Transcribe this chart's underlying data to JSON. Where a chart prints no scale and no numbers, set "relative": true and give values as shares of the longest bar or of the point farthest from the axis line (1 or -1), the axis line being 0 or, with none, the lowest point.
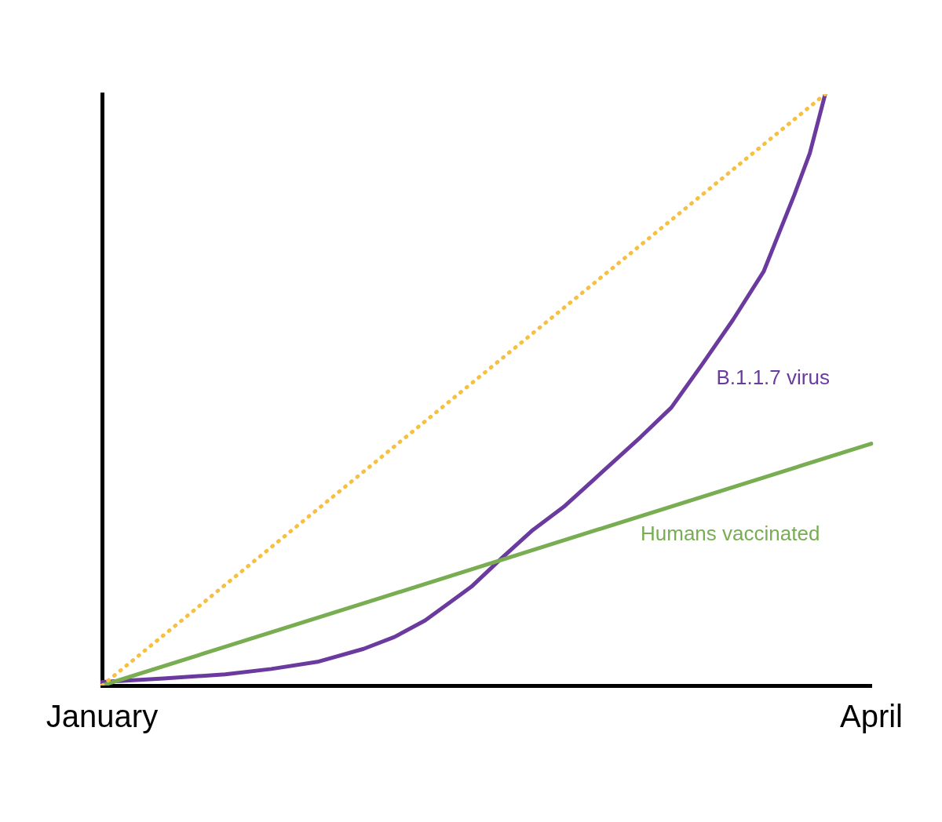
{
  "chart_data": {
    "type": "line",
    "relative": true,
    "tick_labels": "x",
    "grid": false,
    "legend": false,
    "marker": "none",
    "categories": [
      "January",
      null,
      null,
      null,
      null,
      null,
      null,
      null,
      null,
      null,
      null,
      null,
      null,
      null,
      null,
      null,
      null,
      null,
      null,
      null,
      null,
      null,
      null,
      null,
      null,
      null,
      null,
      null,
      null,
      null,
      null,
      null,
      null,
      null,
      null,
      null,
      null,
      null,
      null,
      null,
      null,
      null,
      null,
      null,
      null,
      null,
      null,
      null,
      null,
      null,
      "April"
    ],
    "series": [
      {
        "color": "#f6c142",
        "line_style": "dotted",
        "values": [
          0,
          null,
          null,
          null,
          null,
          null,
          null,
          null,
          null,
          null,
          null,
          null,
          null,
          null,
          null,
          null,
          null,
          null,
          null,
          null,
          null,
          null,
          null,
          null,
          null,
          null,
          null,
          null,
          null,
          null,
          null,
          null,
          null,
          null,
          null,
          null,
          null,
          null,
          null,
          null,
          null,
          null,
          null,
          null,
          null,
          null,
          null,
          1,
          null,
          null,
          null
        ]
      },
      {
        "name": "Humans vaccinated",
        "color": "#78ad52",
        "line_style": "solid",
        "values": [
          0,
          null,
          null,
          null,
          null,
          null,
          null,
          null,
          null,
          null,
          null,
          null,
          null,
          null,
          null,
          null,
          null,
          null,
          null,
          null,
          null,
          null,
          null,
          null,
          null,
          null,
          null,
          null,
          null,
          null,
          null,
          null,
          null,
          null,
          null,
          null,
          null,
          null,
          null,
          null,
          null,
          null,
          null,
          null,
          null,
          null,
          null,
          null,
          null,
          null,
          0.409
        ]
      },
      {
        "name": "B.1.1.7 virus",
        "color": "#6a3a9e",
        "line_style": "solid",
        "values": [
          0.006,
          null,
          null,
          null,
          0.012,
          null,
          null,
          null,
          0.019,
          null,
          null,
          0.028,
          null,
          null,
          0.04,
          null,
          null,
          0.062,
          null,
          0.082,
          null,
          0.11,
          null,
          null,
          0.167,
          null,
          0.216,
          null,
          0.263,
          null,
          0.302,
          null,
          0.349,
          null,
          null,
          0.42,
          null,
          0.47,
          null,
          0.543,
          null,
          0.618,
          null,
          0.7,
          0.765,
          0.83,
          0.9,
          1,
          null,
          null,
          null
        ]
      }
    ]
  }
}
